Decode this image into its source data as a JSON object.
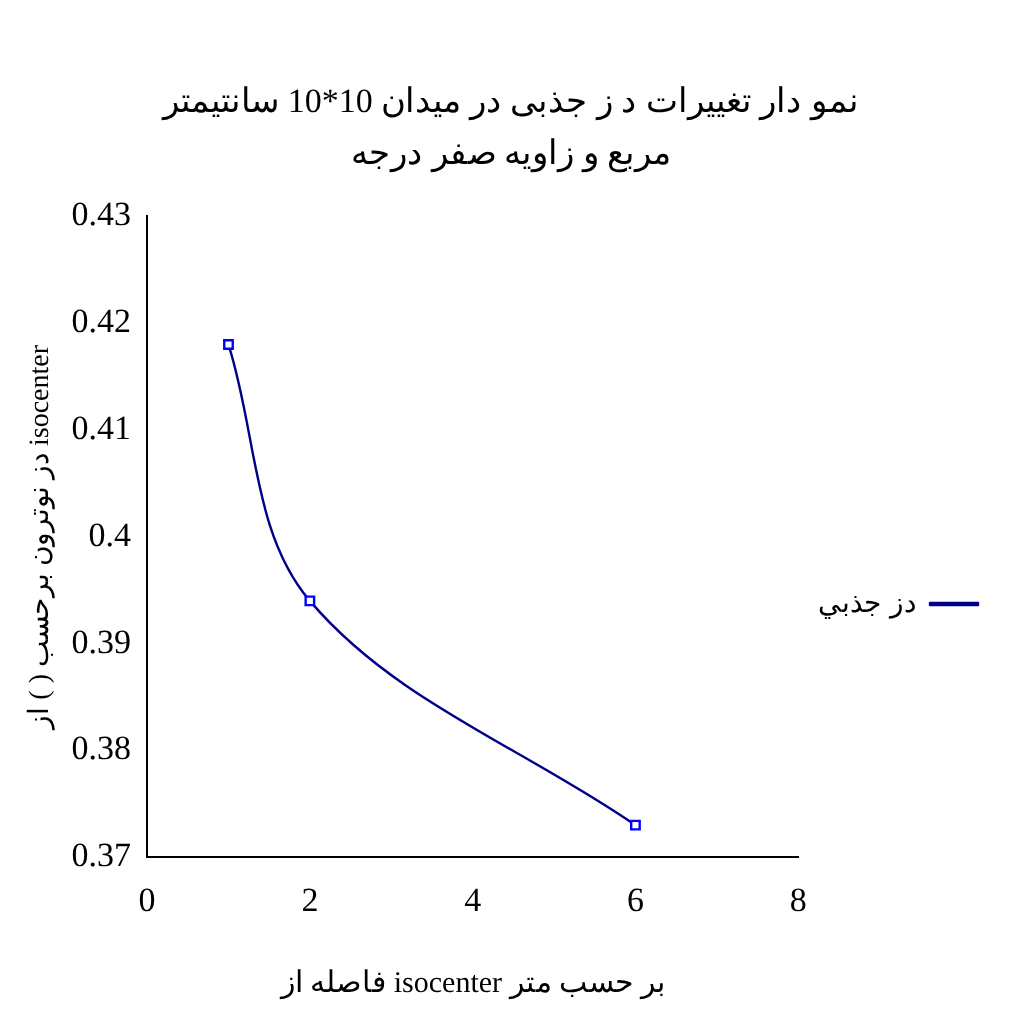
{
  "chart_data": {
    "type": "line",
    "title": "نمو دار تغییرات د ز جذبی در میدان 10*10 سانتیمتر مربع و زاویه صفر درجه",
    "xlabel": "فاصله از isocenter بر حسب متر",
    "ylabel": "دز نوترون برحسب ( ) از isocenter",
    "x": [
      1,
      2,
      6
    ],
    "series": [
      {
        "name": "دز جذبي",
        "color": "#00008b",
        "values": [
          0.418,
          0.394,
          0.373
        ]
      }
    ],
    "xlim": [
      0,
      8
    ],
    "xticks": [
      0,
      2,
      4,
      6,
      8
    ],
    "ylim": [
      0.37,
      0.43
    ],
    "yticks": [
      0.37,
      0.38,
      0.39,
      {
        "value": 0.4,
        "label": "0.4"
      },
      0.41,
      0.42,
      0.43
    ],
    "grid": false,
    "legend": "right",
    "marker": "square",
    "line_style": "solid"
  }
}
